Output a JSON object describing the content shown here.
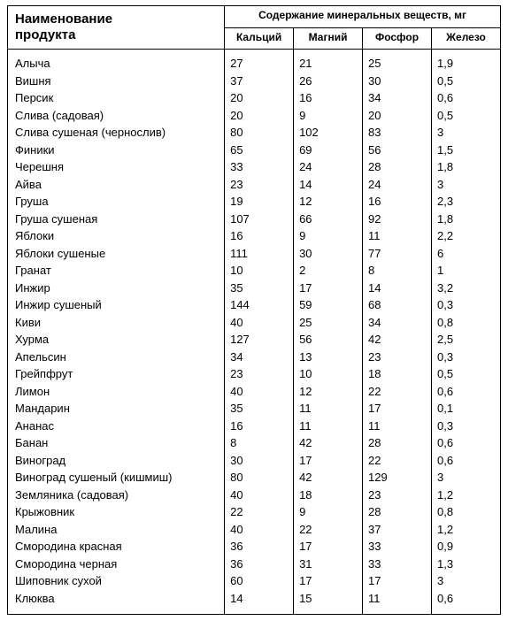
{
  "table": {
    "type": "table",
    "text_color": "#000000",
    "background_color": "#ffffff",
    "border_color": "#000000",
    "font_family": "Arial, Helvetica, sans-serif",
    "header_fontsize_pt": 11,
    "body_fontsize_pt": 10,
    "column_widths_pct": [
      44,
      14,
      14,
      14,
      14
    ],
    "header": {
      "product": "Наименование продукта",
      "group": "Содержание минеральных веществ, мг",
      "sub": [
        "Кальций",
        "Магний",
        "Фосфор",
        "Железо"
      ]
    },
    "rows": [
      {
        "name": "Алыча",
        "ca": "27",
        "mg": "21",
        "p": "25",
        "fe": "1,9"
      },
      {
        "name": "Вишня",
        "ca": "37",
        "mg": "26",
        "p": "30",
        "fe": "0,5"
      },
      {
        "name": "Персик",
        "ca": "20",
        "mg": "16",
        "p": "34",
        "fe": "0,6"
      },
      {
        "name": "Слива (садовая)",
        "ca": "20",
        "mg": "9",
        "p": "20",
        "fe": "0,5"
      },
      {
        "name": "Слива сушеная (чернослив)",
        "ca": "80",
        "mg": "102",
        "p": "83",
        "fe": "3"
      },
      {
        "name": "Финики",
        "ca": "65",
        "mg": "69",
        "p": "56",
        "fe": "1,5"
      },
      {
        "name": "Черешня",
        "ca": "33",
        "mg": "24",
        "p": "28",
        "fe": "1,8"
      },
      {
        "name": "Айва",
        "ca": "23",
        "mg": "14",
        "p": "24",
        "fe": "3"
      },
      {
        "name": "Груша",
        "ca": "19",
        "mg": "12",
        "p": "16",
        "fe": "2,3"
      },
      {
        "name": "Груша сушеная",
        "ca": "107",
        "mg": "66",
        "p": "92",
        "fe": "1,8"
      },
      {
        "name": "Яблоки",
        "ca": "16",
        "mg": "9",
        "p": "11",
        "fe": "2,2"
      },
      {
        "name": "Яблоки сушеные",
        "ca": "111",
        "mg": "30",
        "p": "77",
        "fe": "6"
      },
      {
        "name": "Гранат",
        "ca": "10",
        "mg": "2",
        "p": "8",
        "fe": "1"
      },
      {
        "name": "Инжир",
        "ca": "35",
        "mg": "17",
        "p": "14",
        "fe": "3,2"
      },
      {
        "name": "Инжир сушеный",
        "ca": "144",
        "mg": "59",
        "p": "68",
        "fe": "0,3"
      },
      {
        "name": "Киви",
        "ca": "40",
        "mg": "25",
        "p": "34",
        "fe": "0,8"
      },
      {
        "name": "Хурма",
        "ca": "127",
        "mg": "56",
        "p": "42",
        "fe": "2,5"
      },
      {
        "name": "Апельсин",
        "ca": "34",
        "mg": "13",
        "p": "23",
        "fe": "0,3"
      },
      {
        "name": "Грейпфрут",
        "ca": "23",
        "mg": "10",
        "p": "18",
        "fe": "0,5"
      },
      {
        "name": "Лимон",
        "ca": "40",
        "mg": "12",
        "p": "22",
        "fe": "0,6"
      },
      {
        "name": "Мандарин",
        "ca": "35",
        "mg": "11",
        "p": "17",
        "fe": "0,1"
      },
      {
        "name": "Ананас",
        "ca": "16",
        "mg": "11",
        "p": "11",
        "fe": "0,3"
      },
      {
        "name": "Банан",
        "ca": "8",
        "mg": "42",
        "p": "28",
        "fe": "0,6"
      },
      {
        "name": "Виноград",
        "ca": "30",
        "mg": "17",
        "p": "22",
        "fe": "0,6"
      },
      {
        "name": "Виноград сушеный (кишмиш)",
        "ca": "80",
        "mg": "42",
        "p": "129",
        "fe": "3"
      },
      {
        "name": "Земляника (садовая)",
        "ca": "40",
        "mg": "18",
        "p": "23",
        "fe": "1,2"
      },
      {
        "name": "Крыжовник",
        "ca": "22",
        "mg": "9",
        "p": "28",
        "fe": "0,8"
      },
      {
        "name": "Малина",
        "ca": "40",
        "mg": "22",
        "p": "37",
        "fe": "1,2"
      },
      {
        "name": "Смородина красная",
        "ca": "36",
        "mg": "17",
        "p": "33",
        "fe": "0,9"
      },
      {
        "name": "Смородина черная",
        "ca": "36",
        "mg": "31",
        "p": "33",
        "fe": "1,3"
      },
      {
        "name": "Шиповник сухой",
        "ca": "60",
        "mg": "17",
        "p": "17",
        "fe": "3"
      },
      {
        "name": "Клюква",
        "ca": "14",
        "mg": "15",
        "p": "11",
        "fe": "0,6"
      }
    ]
  }
}
